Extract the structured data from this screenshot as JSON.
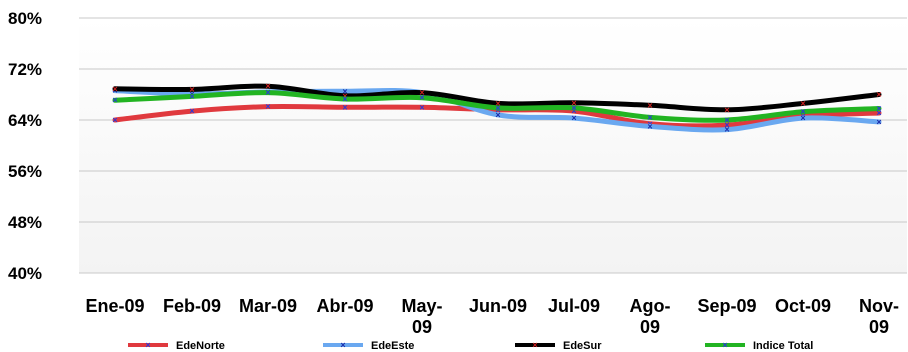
{
  "chart_data": {
    "type": "line",
    "title": "",
    "xlabel": "",
    "ylabel": "",
    "categories": [
      "Ene-09",
      "Feb-09",
      "Mar-09",
      "Abr-09",
      "May-09",
      "Jun-09",
      "Jul-09",
      "Ago-09",
      "Sep-09",
      "Oct-09",
      "Nov-09"
    ],
    "ylim": [
      40,
      80
    ],
    "yticks": [
      "40%",
      "48%",
      "56%",
      "64%",
      "72%",
      "80%"
    ],
    "grid": true,
    "legend_position": "bottom",
    "series": [
      {
        "name": "EdeNorte",
        "color": "#e0393e",
        "values": [
          64.0,
          65.4,
          66.1,
          66.0,
          66.0,
          65.6,
          65.4,
          63.4,
          63.2,
          64.6,
          65.1
        ]
      },
      {
        "name": "EdeEste",
        "color": "#6aa8f0",
        "values": [
          68.6,
          68.1,
          68.4,
          68.5,
          68.3,
          64.8,
          64.3,
          63.0,
          62.5,
          64.3,
          63.7
        ]
      },
      {
        "name": "EdeSur",
        "color": "#000000",
        "values": [
          68.9,
          68.8,
          69.3,
          67.8,
          68.3,
          66.6,
          66.7,
          66.3,
          65.6,
          66.6,
          68.0
        ]
      },
      {
        "name": "Indice Total",
        "color": "#22b422",
        "values": [
          67.1,
          67.7,
          68.3,
          67.3,
          67.5,
          65.9,
          65.9,
          64.4,
          64.0,
          65.3,
          65.8
        ]
      }
    ]
  }
}
